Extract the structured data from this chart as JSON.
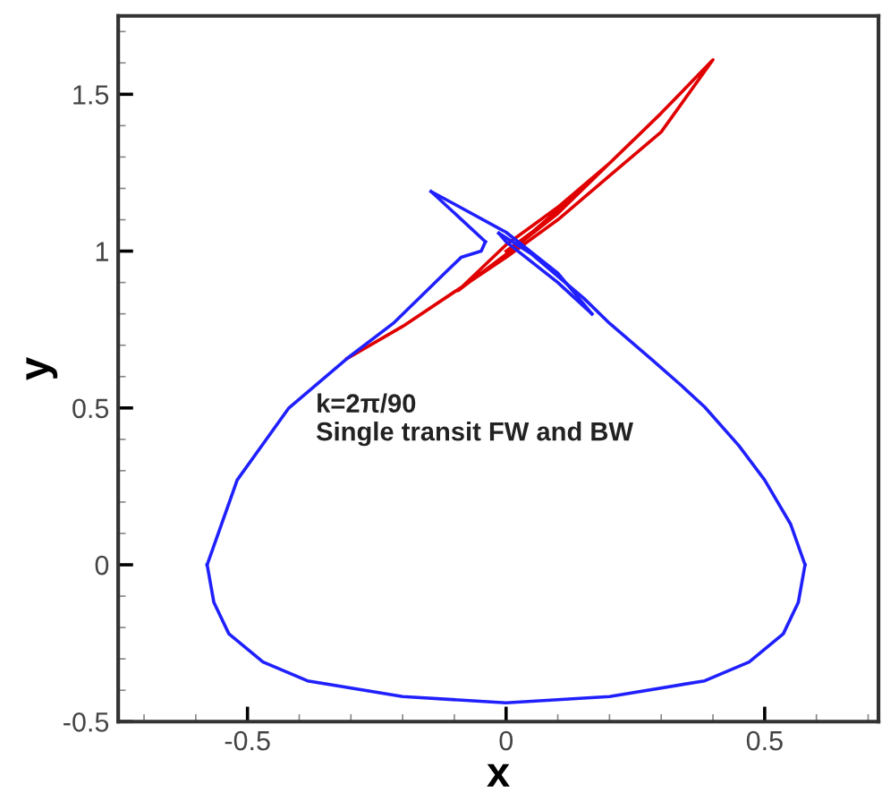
{
  "chart_data": {
    "type": "line",
    "xlabel": "x",
    "ylabel": "y",
    "xlim": [
      -0.75,
      0.72
    ],
    "ylim": [
      -0.5,
      1.75
    ],
    "xticks": [
      -0.5,
      0,
      0.5
    ],
    "yticks": [
      -0.5,
      0,
      0.5,
      1,
      1.5
    ],
    "grid": false,
    "legend": false,
    "marker": "none",
    "line_style": "solid",
    "annotations": [
      "k=2π/90\nSingle transit FW and BW"
    ],
    "series": [
      {
        "color": "#e00000",
        "x": [
          -0.308,
          -0.2,
          -0.1,
          0.0,
          0.1,
          0.2,
          0.3,
          0.4,
          0.3,
          0.2,
          0.1,
          0.0,
          -0.093,
          0.0,
          0.1,
          0.246,
          0.15,
          0.05,
          0.0
        ],
        "values": [
          0.657,
          0.76,
          0.87,
          0.98,
          1.1,
          1.24,
          1.38,
          1.61,
          1.44,
          1.28,
          1.14,
          1.02,
          0.874,
          0.99,
          1.12,
          1.354,
          1.2,
          1.06,
          1.0
        ]
      },
      {
        "color": "#2020ff",
        "x": [
          -0.578,
          -0.55,
          -0.52,
          -0.42,
          -0.308,
          -0.218,
          -0.121,
          -0.087,
          -0.048,
          -0.04
        ],
        "values": [
          0,
          0.13,
          0.27,
          0.5,
          0.657,
          0.77,
          0.926,
          0.98,
          1.0,
          1.03
        ]
      },
      {
        "color": "#2020ff",
        "x": [
          -0.145,
          -0.04
        ],
        "values": [
          1.19,
          1.03
        ]
      },
      {
        "color": "#2020ff",
        "x": [
          -0.145,
          -0.1,
          0.0,
          0.1,
          0.166
        ],
        "values": [
          1.19,
          1.15,
          1.06,
          0.93,
          0.8
        ]
      },
      {
        "color": "#2020ff",
        "x": [
          -0.014,
          0.0,
          0.1,
          0.166
        ],
        "values": [
          1.057,
          1.03,
          0.9,
          0.8
        ]
      },
      {
        "color": "#2020ff",
        "x": [
          -0.014,
          0.05,
          0.15,
          0.2,
          0.28,
          0.34,
          0.384,
          0.45,
          0.5,
          0.55,
          0.578
        ],
        "values": [
          1.057,
          0.99,
          0.85,
          0.77,
          0.657,
          0.57,
          0.503,
          0.38,
          0.27,
          0.13,
          0
        ]
      },
      {
        "color": "#2020ff",
        "x": [
          -0.578,
          -0.565,
          -0.536,
          -0.47,
          -0.384,
          -0.2,
          0,
          0.2,
          0.384,
          0.47,
          0.536,
          0.565,
          0.578
        ],
        "values": [
          0,
          -0.12,
          -0.22,
          -0.31,
          -0.37,
          -0.42,
          -0.44,
          -0.42,
          -0.37,
          -0.31,
          -0.22,
          -0.12,
          0
        ]
      }
    ]
  }
}
